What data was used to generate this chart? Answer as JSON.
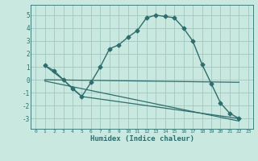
{
  "xlabel": "Humidex (Indice chaleur)",
  "xlim": [
    -0.5,
    23.5
  ],
  "ylim": [
    -3.8,
    5.8
  ],
  "yticks": [
    -3,
    -2,
    -1,
    0,
    1,
    2,
    3,
    4,
    5
  ],
  "xticks": [
    0,
    1,
    2,
    3,
    4,
    5,
    6,
    7,
    8,
    9,
    10,
    11,
    12,
    13,
    14,
    15,
    16,
    17,
    18,
    19,
    20,
    21,
    22,
    23
  ],
  "bg_color": "#c8e8e0",
  "grid_color": "#a0c8c0",
  "line_color": "#2e6e6e",
  "series": [
    {
      "x": [
        1,
        2,
        3,
        4,
        5,
        6,
        7,
        8,
        9,
        10,
        11,
        12,
        13,
        14,
        15,
        16,
        17,
        18,
        19,
        20,
        21,
        22
      ],
      "y": [
        1.1,
        0.7,
        0.0,
        -0.7,
        -1.3,
        -0.2,
        1.0,
        2.4,
        2.7,
        3.3,
        3.8,
        4.8,
        5.0,
        4.9,
        4.8,
        4.0,
        3.0,
        1.2,
        -0.3,
        -1.8,
        -2.6,
        -3.0
      ],
      "marker": "D",
      "markersize": 2.5,
      "linewidth": 1.0
    },
    {
      "x": [
        1,
        3,
        5,
        22
      ],
      "y": [
        1.1,
        0.0,
        -1.3,
        -3.0
      ],
      "marker": null,
      "markersize": 0,
      "linewidth": 0.9
    },
    {
      "x": [
        1,
        22
      ],
      "y": [
        0.0,
        -0.2
      ],
      "marker": null,
      "markersize": 0,
      "linewidth": 0.9
    },
    {
      "x": [
        1,
        22
      ],
      "y": [
        -0.1,
        -3.2
      ],
      "marker": null,
      "markersize": 0,
      "linewidth": 0.9
    }
  ]
}
